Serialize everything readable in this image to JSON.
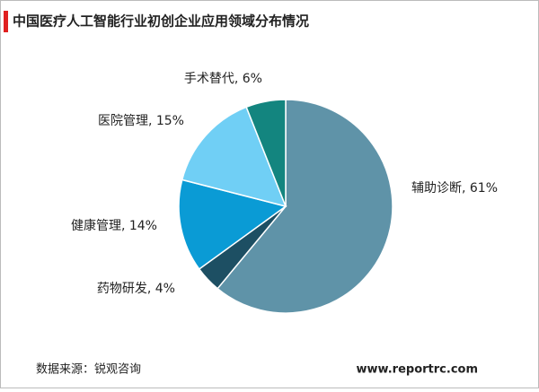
{
  "chart_data": {
    "type": "pie",
    "title": "中国医疗人工智能行业初创企业应用领域分布情况",
    "values": [
      61,
      4,
      14,
      15,
      6
    ],
    "value_labels": [
      "辅助诊断, 61%",
      "药物研发, 4%",
      "健康管理, 14%",
      "医院管理, 15%",
      "手术替代, 6%"
    ],
    "colors": [
      "#5f93a8",
      "#1d4f63",
      "#0a9bd5",
      "#70cff5",
      "#13857f"
    ],
    "source": "数据来源：锐观咨询",
    "website": "www.reportrc.com"
  }
}
